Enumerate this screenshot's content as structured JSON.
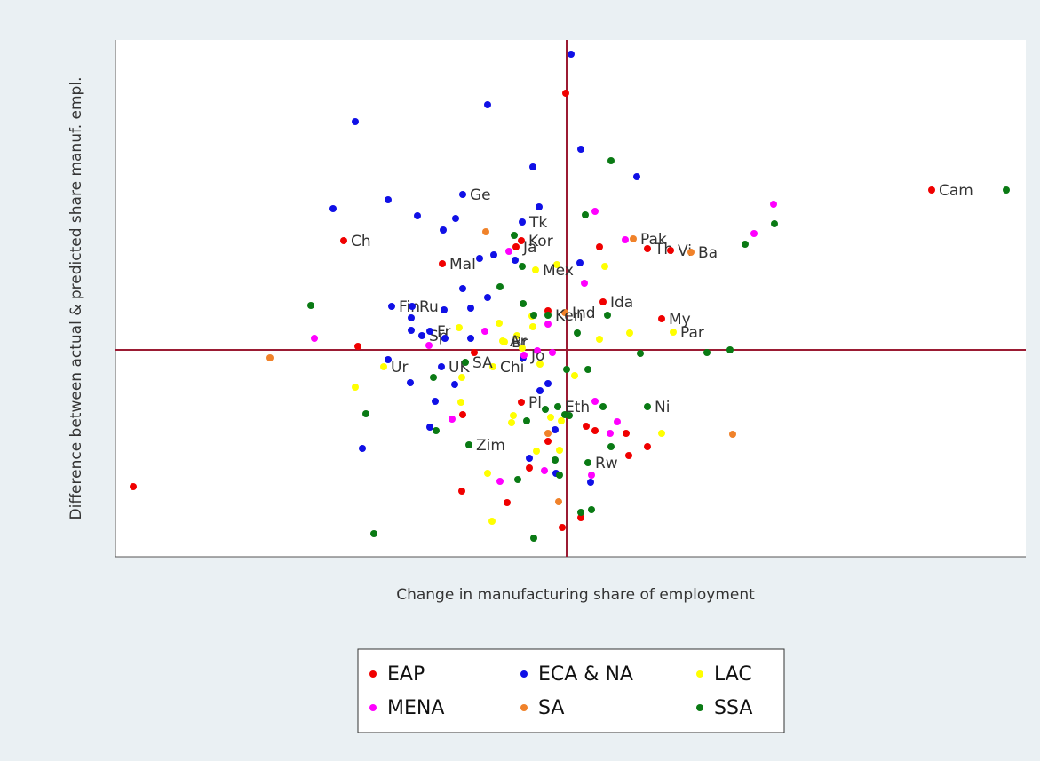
{
  "chart_data": {
    "type": "scatter",
    "xlabel": "Change in manufacturing share of employment",
    "ylabel": "Difference between actual & predicted share manuf. empl.",
    "xlim": [
      -508,
      517
    ],
    "ylim": [
      -233,
      349
    ],
    "hline": 0,
    "vline": 0,
    "ref_color": "#9b1b33",
    "series": [
      {
        "name": "EAP",
        "color": "#f00000",
        "x": [
          411,
          -251,
          -140,
          -51,
          -57,
          -1,
          37,
          91,
          117,
          41,
          107,
          -21,
          -235,
          -104,
          -51,
          -117,
          22,
          67,
          91,
          70,
          -21,
          -42,
          -118,
          -67,
          -5,
          16,
          -488,
          32
        ],
        "values": [
          180,
          123,
          97,
          123,
          116,
          289,
          116,
          114,
          112,
          54,
          35,
          44,
          4,
          -3,
          -59,
          -73,
          -86,
          -94,
          -109,
          -119,
          -103,
          -133,
          -159,
          -172,
          -200,
          -189,
          -154,
          -91
        ],
        "labels": [
          "Cam",
          "Ch",
          "Mal",
          "Kor",
          "Ja",
          null,
          null,
          "Th",
          "Vi",
          "Ida",
          "My",
          null,
          null,
          null,
          "Pl",
          null,
          null,
          null,
          null,
          null,
          null,
          null,
          null,
          null,
          null,
          null,
          null,
          null
        ]
      },
      {
        "name": "ECA & NA",
        "color": "#1010e6",
        "x": [
          5,
          -89,
          -238,
          16,
          -38,
          79,
          -117,
          -201,
          -263,
          -31,
          -168,
          -125,
          -50,
          -139,
          -98,
          -82,
          -58,
          15,
          -117,
          -89,
          -197,
          -174,
          -138,
          -108,
          -175,
          -175,
          -163,
          -154,
          -137,
          -108,
          -201,
          -176,
          -141,
          -126,
          -148,
          -30,
          -21,
          -154,
          -230,
          -42,
          -13,
          -12,
          27,
          -49
        ],
        "values": [
          333,
          276,
          257,
          226,
          206,
          195,
          175,
          169,
          159,
          161,
          151,
          148,
          144,
          135,
          103,
          107,
          101,
          98,
          69,
          59,
          49,
          49,
          45,
          47,
          36,
          22,
          16,
          21,
          13,
          13,
          -11,
          -37,
          -19,
          -39,
          -58,
          -46,
          -38,
          -87,
          -111,
          -122,
          -90,
          -139,
          -149,
          -9
        ],
        "labels": [
          null,
          null,
          null,
          null,
          null,
          null,
          "Ge",
          null,
          null,
          null,
          null,
          null,
          "Tk",
          null,
          null,
          null,
          null,
          null,
          null,
          null,
          "Fin",
          "Ru",
          null,
          null,
          null,
          null,
          "Sp",
          "Fr",
          null,
          null,
          null,
          null,
          "UK",
          null,
          null,
          null,
          null,
          null,
          null,
          null,
          null,
          null,
          null,
          null
        ]
      },
      {
        "name": "LAC",
        "color": "#ffff00",
        "x": [
          43,
          -11,
          -35,
          37,
          71,
          120,
          -76,
          -56,
          -72,
          -70,
          -50,
          -121,
          -206,
          -83,
          -238,
          -118,
          -119,
          -60,
          -62,
          -18,
          9,
          -30,
          107,
          -6,
          -34,
          -8,
          -89,
          -84,
          -39,
          -38
        ],
        "values": [
          94,
          96,
          90,
          12,
          19,
          20,
          30,
          16,
          10,
          9,
          2,
          25,
          -19,
          -19,
          -42,
          -31,
          -59,
          -74,
          -82,
          -76,
          -29,
          -16,
          -94,
          -80,
          -114,
          -113,
          -139,
          -193,
          38,
          26
        ],
        "labels": [
          null,
          null,
          "Mex",
          null,
          null,
          "Par",
          null,
          null,
          "Ar",
          "Br",
          null,
          null,
          "Ur",
          "Chi",
          null,
          null,
          null,
          null,
          null,
          null,
          null,
          null,
          null,
          null,
          null,
          null,
          null,
          null,
          null,
          null
        ]
      },
      {
        "name": "MENA",
        "color": "#ff00ff",
        "x": [
          233,
          211,
          32,
          66,
          -65,
          20,
          -21,
          -284,
          -155,
          -92,
          -33,
          -48,
          -16,
          -129,
          32,
          57,
          49,
          -25,
          -75,
          28
        ],
        "values": [
          164,
          131,
          156,
          124,
          111,
          75,
          29,
          13,
          5,
          21,
          -1,
          -6,
          -3,
          -78,
          -58,
          -81,
          -94,
          -136,
          -148,
          -141
        ],
        "labels": [
          null,
          null,
          null,
          null,
          null,
          null,
          null,
          null,
          null,
          null,
          null,
          "Jo",
          null,
          null,
          null,
          null,
          null,
          null,
          null,
          null
        ]
      },
      {
        "name": "SA",
        "color": "#f0822a",
        "x": [
          -91,
          75,
          140,
          -2,
          -334,
          187,
          -21,
          -9
        ],
        "values": [
          133,
          125,
          110,
          42,
          -9,
          -95,
          -94,
          -171
        ],
        "labels": [
          null,
          "Pak",
          "Ba",
          "Ind",
          null,
          null,
          null,
          null
        ]
      },
      {
        "name": "SSA",
        "color": "#0a7a14",
        "x": [
          495,
          234,
          201,
          50,
          21,
          -59,
          -50,
          -75,
          -49,
          -37,
          -21,
          46,
          12,
          -288,
          -114,
          184,
          158,
          83,
          24,
          0,
          -150,
          -226,
          -147,
          -110,
          -45,
          -24,
          -10,
          41,
          91,
          -2,
          24,
          50,
          -13,
          -55,
          -8,
          -217,
          -37,
          16,
          28,
          3
        ],
        "values": [
          180,
          142,
          119,
          213,
          152,
          129,
          94,
          71,
          52,
          39,
          39,
          39,
          19,
          50,
          -14,
          0,
          -3,
          -4,
          -22,
          -22,
          -31,
          -72,
          -91,
          -107,
          -80,
          -67,
          -64,
          -64,
          -64,
          -73,
          -127,
          -109,
          -124,
          -146,
          -141,
          -207,
          -212,
          -183,
          -180,
          -74
        ],
        "labels": [
          null,
          null,
          null,
          null,
          null,
          null,
          null,
          null,
          null,
          null,
          "Ken",
          null,
          null,
          null,
          "SA",
          null,
          null,
          null,
          null,
          null,
          null,
          null,
          null,
          "Zim",
          null,
          null,
          "Eth",
          null,
          "Ni",
          null,
          "Rw",
          null,
          null,
          null,
          null,
          null,
          null,
          null,
          null,
          null
        ]
      }
    ]
  }
}
